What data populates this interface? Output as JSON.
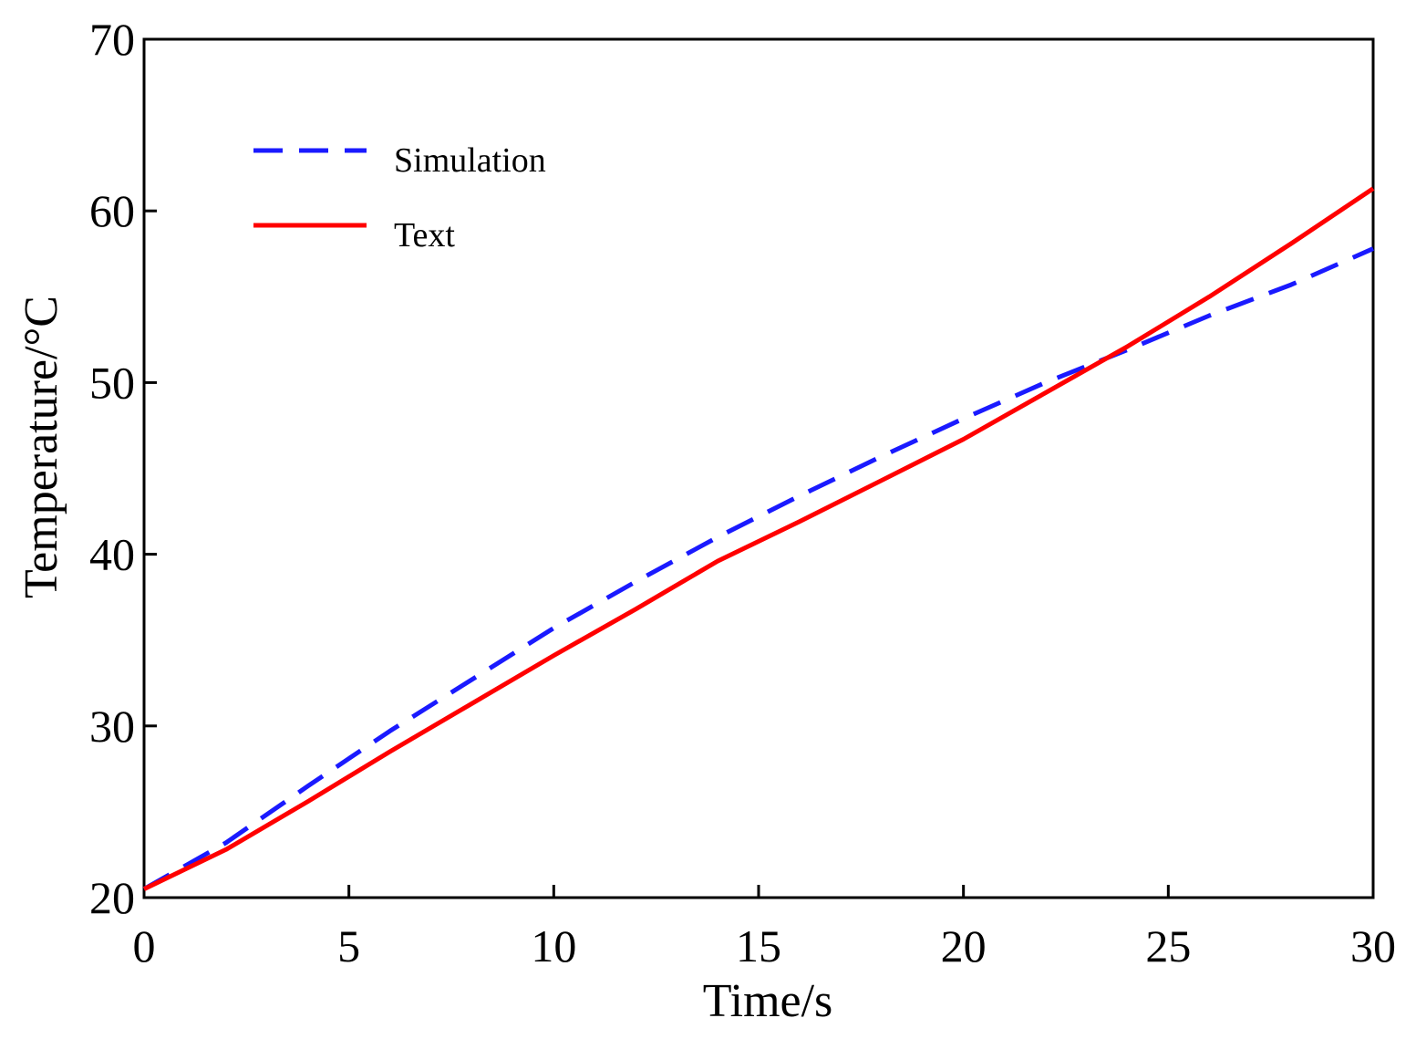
{
  "chart_data": {
    "type": "line",
    "title": "",
    "xlabel": "Time/s",
    "ylabel": "Temperature/°C",
    "xlim": [
      0,
      30
    ],
    "ylim": [
      20,
      70
    ],
    "xticks": [
      0,
      5,
      10,
      15,
      20,
      25,
      30
    ],
    "yticks": [
      20,
      30,
      40,
      50,
      60,
      70
    ],
    "grid": false,
    "legend_position": "upper-left",
    "series": [
      {
        "name": "Simulation",
        "color": "#1a1aff",
        "style": "dashed",
        "x": [
          0,
          2,
          4,
          6,
          8,
          10,
          12,
          14,
          16,
          18,
          20,
          22,
          24,
          26,
          28,
          30
        ],
        "y": [
          20.5,
          23.2,
          26.5,
          29.7,
          32.7,
          35.7,
          38.4,
          41.0,
          43.4,
          45.7,
          47.9,
          50.0,
          51.9,
          53.9,
          55.7,
          57.8
        ]
      },
      {
        "name": "Text",
        "color": "#ff0000",
        "style": "solid",
        "x": [
          0,
          2,
          4,
          6,
          8,
          10,
          12,
          14,
          16,
          18,
          20,
          22,
          24,
          26,
          28,
          30
        ],
        "y": [
          20.5,
          22.8,
          25.6,
          28.5,
          31.3,
          34.1,
          36.8,
          39.6,
          41.9,
          44.3,
          46.7,
          49.4,
          52.1,
          55.0,
          58.1,
          61.3
        ]
      }
    ]
  }
}
